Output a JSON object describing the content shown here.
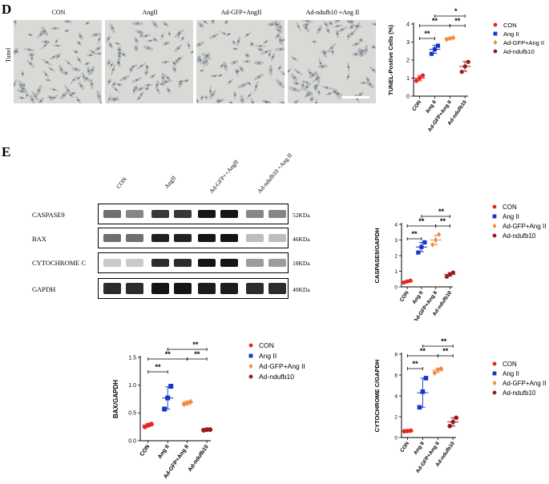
{
  "panels": {
    "d_letter": "D",
    "e_letter": "E"
  },
  "micrographs": {
    "side_label": "Tunel",
    "labels": [
      "CON",
      "AngII",
      "Ad-GFP+AngII",
      "Ad-ndufb10 +Ang II"
    ]
  },
  "blot": {
    "lane_labels": [
      "CON",
      "AngII",
      "Ad-GFP++AngII",
      "Ad-ndufb10 +Ang II"
    ],
    "rows": [
      {
        "name": "CASPASE9",
        "kda": "52KDa"
      },
      {
        "name": "BAX",
        "kda": "46KDa"
      },
      {
        "name": "CYTOCHROME C",
        "kda": "18KDa"
      },
      {
        "name": "GAPDH",
        "kda": "40KDa"
      }
    ]
  },
  "colors": {
    "CON": "#e8231f",
    "AngII": "#1535c8",
    "AdGFP": "#f08a3c",
    "Adndufb10": "#9a1a1a"
  },
  "chart_data": [
    {
      "id": "tunel",
      "type": "scatter",
      "ylabel": "TUNEL-Postive Cells (%)",
      "ylim": [
        0,
        4
      ],
      "yticks": [
        0,
        1,
        2,
        3,
        4
      ],
      "categories": [
        "CON",
        "Ang II",
        "Ad-GFP+Ang II",
        "Ad-ndufb10"
      ],
      "legend": [
        "CON",
        "Ang II",
        "Ad-GFP+Ang II",
        "Ad-ndufb10"
      ],
      "points": [
        [
          0.85,
          1.0,
          1.15
        ],
        [
          2.35,
          2.6,
          2.8
        ],
        [
          3.15,
          3.2,
          3.25
        ],
        [
          1.35,
          1.65,
          1.9
        ]
      ],
      "means": [
        1.0,
        2.6,
        3.2,
        1.65
      ],
      "sds": [
        0.15,
        0.22,
        0.05,
        0.27
      ],
      "significance": [
        {
          "from": 0,
          "to": 1,
          "label": "**"
        },
        {
          "from": 0,
          "to": 2,
          "label": "**"
        },
        {
          "from": 2,
          "to": 3,
          "label": "**"
        },
        {
          "from": 1,
          "to": 3,
          "label": "*"
        }
      ]
    },
    {
      "id": "caspase9",
      "type": "scatter",
      "ylabel": "CASPASE9/GAPDH",
      "ylim": [
        0,
        4
      ],
      "yticks": [
        0,
        1,
        2,
        3,
        4
      ],
      "categories": [
        "CON",
        "Ang II",
        "Ad-GFP+Ang II",
        "Ad-ndufb10"
      ],
      "legend": [
        "CON",
        "Ang II",
        "Ad-GFP+Ang II",
        "Ad-ndufb10"
      ],
      "points": [
        [
          0.28,
          0.35,
          0.4
        ],
        [
          2.2,
          2.55,
          2.85
        ],
        [
          2.7,
          3.0,
          3.35
        ],
        [
          0.65,
          0.8,
          0.92
        ]
      ],
      "means": [
        0.34,
        2.55,
        3.0,
        0.8
      ],
      "sds": [
        0.06,
        0.3,
        0.3,
        0.12
      ],
      "significance": [
        {
          "from": 0,
          "to": 1,
          "label": "**"
        },
        {
          "from": 0,
          "to": 2,
          "label": "**"
        },
        {
          "from": 2,
          "to": 3,
          "label": "**"
        },
        {
          "from": 1,
          "to": 3,
          "label": "**"
        }
      ]
    },
    {
      "id": "bax",
      "type": "scatter",
      "ylabel": "BAX/GAPDH",
      "ylim": [
        0,
        1.5
      ],
      "yticks": [
        0.0,
        0.5,
        1.0,
        1.5
      ],
      "categories": [
        "CON",
        "Ang II",
        "Ad-GFP+Ang II",
        "Ad-ndufb10"
      ],
      "legend": [
        "CON",
        "Ang II",
        "Ad-GFP+Ang II",
        "Ad-ndufb10"
      ],
      "points": [
        [
          0.25,
          0.28,
          0.3
        ],
        [
          0.57,
          0.77,
          0.98
        ],
        [
          0.66,
          0.68,
          0.7
        ],
        [
          0.19,
          0.2,
          0.2
        ]
      ],
      "means": [
        0.28,
        0.77,
        0.68,
        0.2
      ],
      "sds": [
        0.03,
        0.2,
        0.03,
        0.01
      ],
      "significance": [
        {
          "from": 0,
          "to": 1,
          "label": "**"
        },
        {
          "from": 0,
          "to": 2,
          "label": "**"
        },
        {
          "from": 2,
          "to": 3,
          "label": "**"
        },
        {
          "from": 1,
          "to": 3,
          "label": "**"
        }
      ]
    },
    {
      "id": "cytochrome",
      "type": "scatter",
      "ylabel": "CYTOCHROME C/GAPDH",
      "ylim": [
        0,
        8
      ],
      "yticks": [
        0,
        2,
        4,
        6,
        8
      ],
      "categories": [
        "CON",
        "Ang II",
        "Ad-GFP+Ang II",
        "Ad-ndufb10"
      ],
      "legend": [
        "CON",
        "Ang II",
        "Ad-GFP+Ang II",
        "Ad-ndufb10"
      ],
      "points": [
        [
          0.6,
          0.62,
          0.66
        ],
        [
          2.9,
          4.4,
          5.7
        ],
        [
          6.2,
          6.5,
          6.6
        ],
        [
          1.1,
          1.5,
          1.9
        ]
      ],
      "means": [
        0.63,
        4.3,
        6.45,
        1.5
      ],
      "sds": [
        0.03,
        1.4,
        0.2,
        0.4
      ],
      "significance": [
        {
          "from": 0,
          "to": 1,
          "label": "**"
        },
        {
          "from": 0,
          "to": 2,
          "label": "**"
        },
        {
          "from": 2,
          "to": 3,
          "label": "**"
        },
        {
          "from": 1,
          "to": 3,
          "label": "**"
        }
      ]
    }
  ]
}
